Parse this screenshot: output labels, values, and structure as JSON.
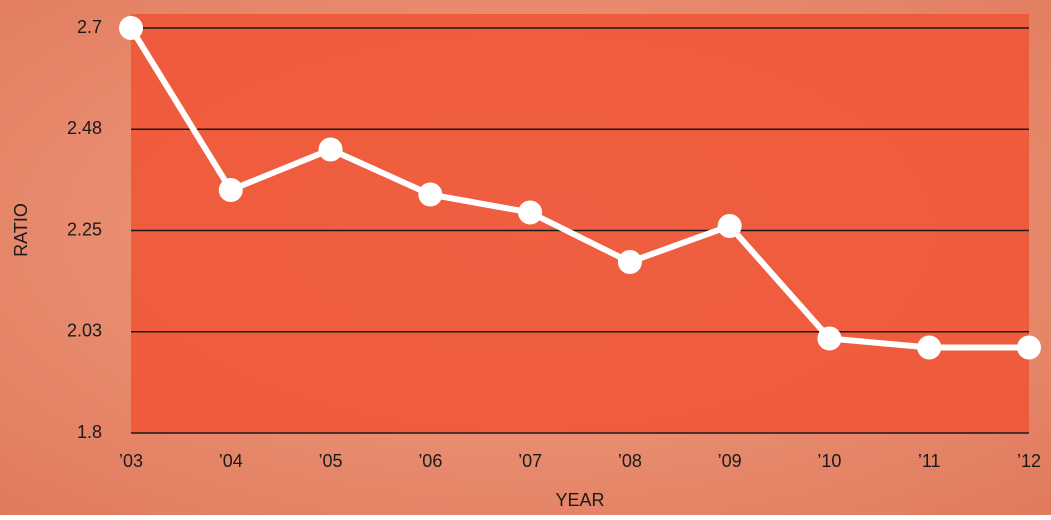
{
  "chart_data": {
    "type": "line",
    "x_label": "YEAR",
    "y_label": "RATIO",
    "categories": [
      "’03",
      "’04",
      "’05",
      "’06",
      "’07",
      "’08",
      "’09",
      "’10",
      "’11",
      "’12"
    ],
    "values": [
      2.7,
      2.34,
      2.43,
      2.33,
      2.29,
      2.18,
      2.26,
      2.01,
      1.99,
      1.99
    ],
    "color": "#ffffff",
    "ylim": [
      1.8,
      2.7
    ],
    "yticks": [
      1.8,
      {
        "value": 2.025,
        "label": "2.03"
      },
      2.25,
      {
        "value": 2.475,
        "label": "2.48"
      },
      2.7
    ],
    "grid": true
  }
}
